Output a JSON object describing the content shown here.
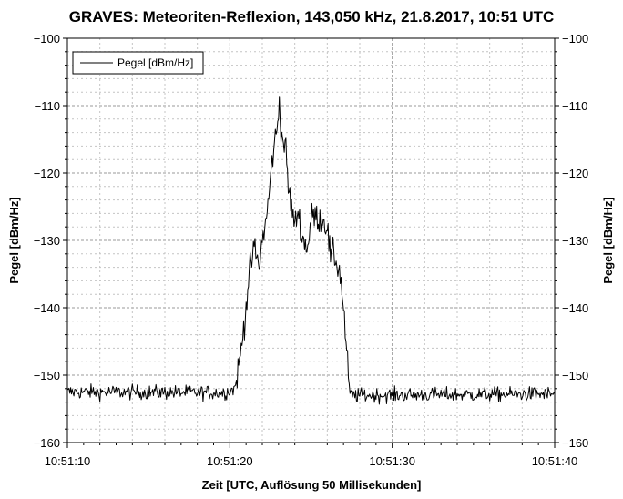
{
  "chart_data": {
    "type": "line",
    "title": "GRAVES: Meteoriten-Reflexion, 143,050 kHz, 21.8.2017, 10:51 UTC",
    "xlabel": "Zeit [UTC, Auflösung 50 Millisekunden]",
    "ylabel": "Pegel [dBm/Hz]",
    "ylabel_right": "Pegel [dBm/Hz]",
    "x_ticks": [
      "10:51:10",
      "10:51:20",
      "10:51:30",
      "10:51:40"
    ],
    "x_tick_seconds": [
      0,
      10,
      20,
      30
    ],
    "xlim_seconds": [
      0,
      30
    ],
    "x_resolution_seconds": 0.05,
    "ylim": [
      -160,
      -100
    ],
    "y_ticks": [
      -100,
      -110,
      -120,
      -130,
      -140,
      -150,
      -160
    ],
    "y_tick_labels": [
      "−100",
      "−110",
      "−120",
      "−130",
      "−140",
      "−150",
      "−160"
    ],
    "grid": true,
    "legend_position": "top-left",
    "series": [
      {
        "name": "Pegel [dBm/Hz]",
        "color": "#000000",
        "noise_floor_db": -152.5,
        "noise_std_db": 0.9,
        "envelope": [
          [
            0.0,
            -152.5
          ],
          [
            9.7,
            -152.6
          ],
          [
            10.3,
            -152.0
          ],
          [
            10.6,
            -148.0
          ],
          [
            10.9,
            -142.0
          ],
          [
            11.2,
            -135.0
          ],
          [
            11.5,
            -131.0
          ],
          [
            11.8,
            -134.0
          ],
          [
            12.0,
            -130.0
          ],
          [
            12.3,
            -126.0
          ],
          [
            12.5,
            -121.0
          ],
          [
            12.7,
            -116.0
          ],
          [
            12.9,
            -114.0
          ],
          [
            13.05,
            -109.0
          ],
          [
            13.2,
            -115.0
          ],
          [
            13.4,
            -115.5
          ],
          [
            13.6,
            -122.0
          ],
          [
            13.8,
            -125.0
          ],
          [
            14.0,
            -128.0
          ],
          [
            14.2,
            -125.5
          ],
          [
            14.5,
            -130.0
          ],
          [
            14.8,
            -131.0
          ],
          [
            15.0,
            -127.0
          ],
          [
            15.1,
            -126.2
          ],
          [
            15.5,
            -126.8
          ],
          [
            15.8,
            -127.0
          ],
          [
            16.0,
            -128.0
          ],
          [
            16.2,
            -132.5
          ],
          [
            16.4,
            -132.0
          ],
          [
            16.6,
            -133.5
          ],
          [
            16.8,
            -135.0
          ],
          [
            17.0,
            -140.0
          ],
          [
            17.2,
            -147.0
          ],
          [
            17.4,
            -153.0
          ],
          [
            30.0,
            -152.8
          ]
        ],
        "signal_jitter_db": 1.8
      }
    ]
  }
}
